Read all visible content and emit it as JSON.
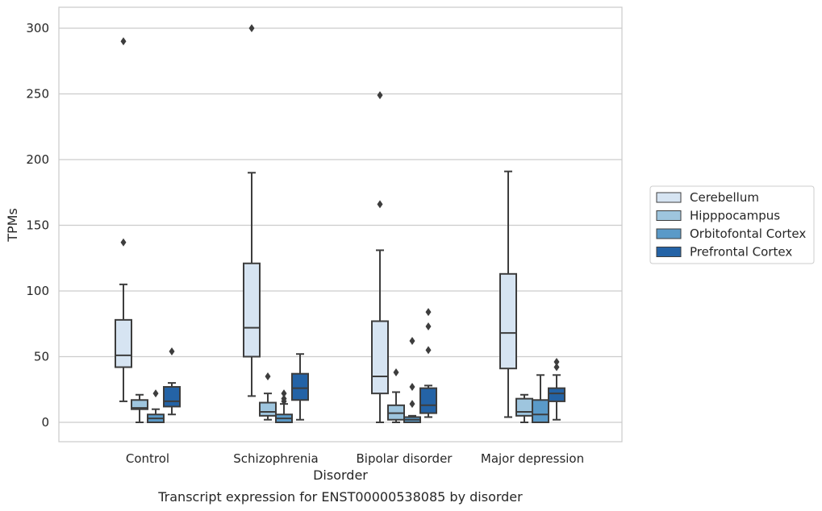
{
  "chart_data": {
    "type": "box",
    "title": "",
    "caption": "Transcript expression for ENST00000538085 by disorder",
    "xlabel": "Disorder",
    "ylabel": "TPMs",
    "ylim": [
      -14,
      315
    ],
    "yticks": [
      0,
      50,
      100,
      150,
      200,
      250,
      300
    ],
    "ytick_labels": [
      "0",
      "50",
      "100",
      "150",
      "200",
      "250",
      "300"
    ],
    "grid": "horizontal",
    "legend_position": "right",
    "categories": [
      "Control",
      "Schizophrenia",
      "Bipolar disorder",
      "Major depression"
    ],
    "series": [
      {
        "name": "Cerebellum",
        "color": "#d6e4f2",
        "boxes": [
          {
            "whislo": 16,
            "q1": 42,
            "med": 51,
            "q3": 78,
            "whishi": 105,
            "fliers": [
              137,
              290
            ]
          },
          {
            "whislo": 20,
            "q1": 50,
            "med": 72,
            "q3": 121,
            "whishi": 190,
            "fliers": [
              300
            ]
          },
          {
            "whislo": 0,
            "q1": 22,
            "med": 35,
            "q3": 77,
            "whishi": 131,
            "fliers": [
              166,
              249
            ]
          },
          {
            "whislo": 4,
            "q1": 41,
            "med": 68,
            "q3": 113,
            "whishi": 191,
            "fliers": []
          }
        ]
      },
      {
        "name": "Hipppocampus",
        "color": "#9ec5de",
        "boxes": [
          {
            "whislo": 0,
            "q1": 10,
            "med": 11,
            "q3": 17,
            "whishi": 21,
            "fliers": []
          },
          {
            "whislo": 2,
            "q1": 5,
            "med": 8,
            "q3": 15,
            "whishi": 22,
            "fliers": [
              35
            ]
          },
          {
            "whislo": 0,
            "q1": 2,
            "med": 7,
            "q3": 13,
            "whishi": 23,
            "fliers": [
              38
            ]
          },
          {
            "whislo": 0,
            "q1": 5,
            "med": 8,
            "q3": 18,
            "whishi": 21,
            "fliers": []
          }
        ]
      },
      {
        "name": "Orbitofontal Cortex",
        "color": "#5a9ac8",
        "boxes": [
          {
            "whislo": 0,
            "q1": 0,
            "med": 3,
            "q3": 6,
            "whishi": 10,
            "fliers": [
              22
            ]
          },
          {
            "whislo": 0,
            "q1": 0,
            "med": 3,
            "q3": 6,
            "whishi": 14,
            "fliers": [
              16,
              18,
              22
            ]
          },
          {
            "whislo": 0,
            "q1": 0,
            "med": 2,
            "q3": 4,
            "whishi": 5,
            "fliers": [
              14,
              27,
              62
            ]
          },
          {
            "whislo": 0,
            "q1": 0,
            "med": 6,
            "q3": 17,
            "whishi": 36,
            "fliers": []
          }
        ]
      },
      {
        "name": "Prefrontal Cortex",
        "color": "#2463a6",
        "boxes": [
          {
            "whislo": 6,
            "q1": 12,
            "med": 16,
            "q3": 27,
            "whishi": 30,
            "fliers": [
              54
            ]
          },
          {
            "whislo": 2,
            "q1": 17,
            "med": 26,
            "q3": 37,
            "whishi": 52,
            "fliers": []
          },
          {
            "whislo": 4,
            "q1": 7,
            "med": 13,
            "q3": 26,
            "whishi": 28,
            "fliers": [
              55,
              73,
              84
            ]
          },
          {
            "whislo": 2,
            "q1": 16,
            "med": 22,
            "q3": 26,
            "whishi": 36,
            "fliers": [
              42,
              46
            ]
          }
        ]
      }
    ]
  }
}
